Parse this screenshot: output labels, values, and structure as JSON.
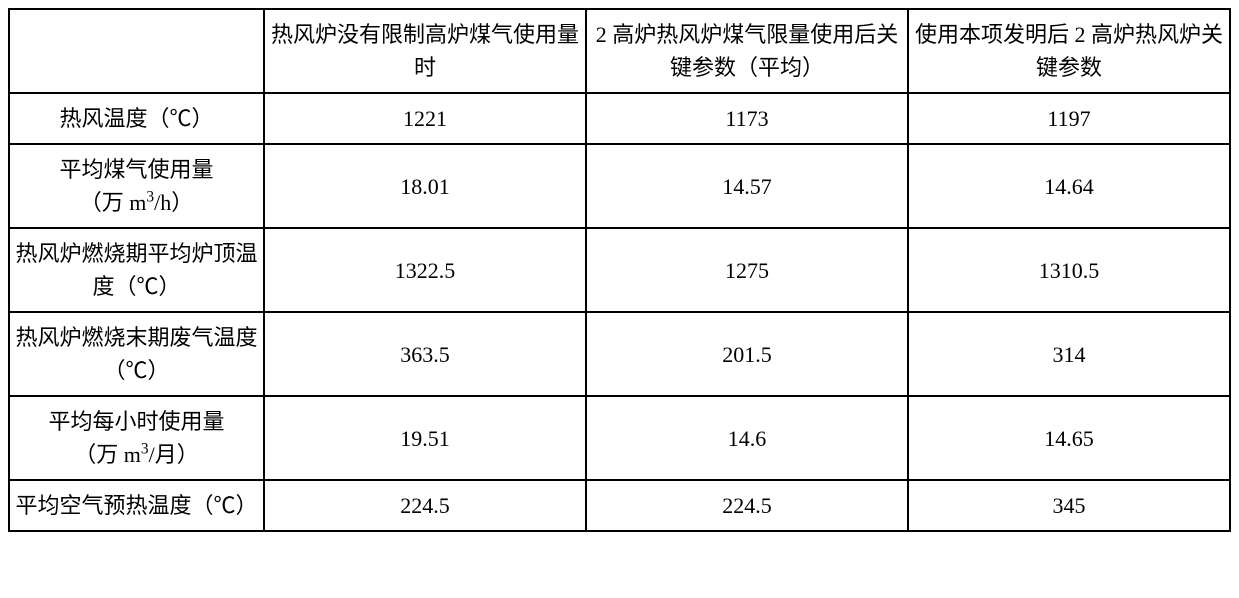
{
  "table": {
    "columns": [
      "",
      "热风炉没有限制高炉煤气使用量时",
      "2 高炉热风炉煤气限量使用后关键参数（平均）",
      "使用本项发明后 2 高炉热风炉关键参数"
    ],
    "rows": [
      {
        "label_html": "热风温度（℃）",
        "values": [
          "1221",
          "1173",
          "1197"
        ]
      },
      {
        "label_html": "平均煤气使用量<br>（万 m<span class=\"sup\">3</span>/h）",
        "values": [
          "18.01",
          "14.57",
          "14.64"
        ]
      },
      {
        "label_html": "热风炉燃烧期平均炉顶温度（℃）",
        "values": [
          "1322.5",
          "1275",
          "1310.5"
        ]
      },
      {
        "label_html": "热风炉燃烧末期废气温度（℃）",
        "values": [
          "363.5",
          "201.5",
          "314"
        ]
      },
      {
        "label_html": "平均每小时使用量<br>（万 m<span class=\"sup\">3</span>/月）",
        "values": [
          "19.51",
          "14.6",
          "14.65"
        ]
      },
      {
        "label_html": "平均空气预热温度（℃）",
        "values": [
          "224.5",
          "224.5",
          "345"
        ]
      }
    ],
    "border_color": "#000000",
    "background_color": "#ffffff",
    "font_size": 22,
    "row_label_col_width": 255,
    "data_col_width": 322
  }
}
